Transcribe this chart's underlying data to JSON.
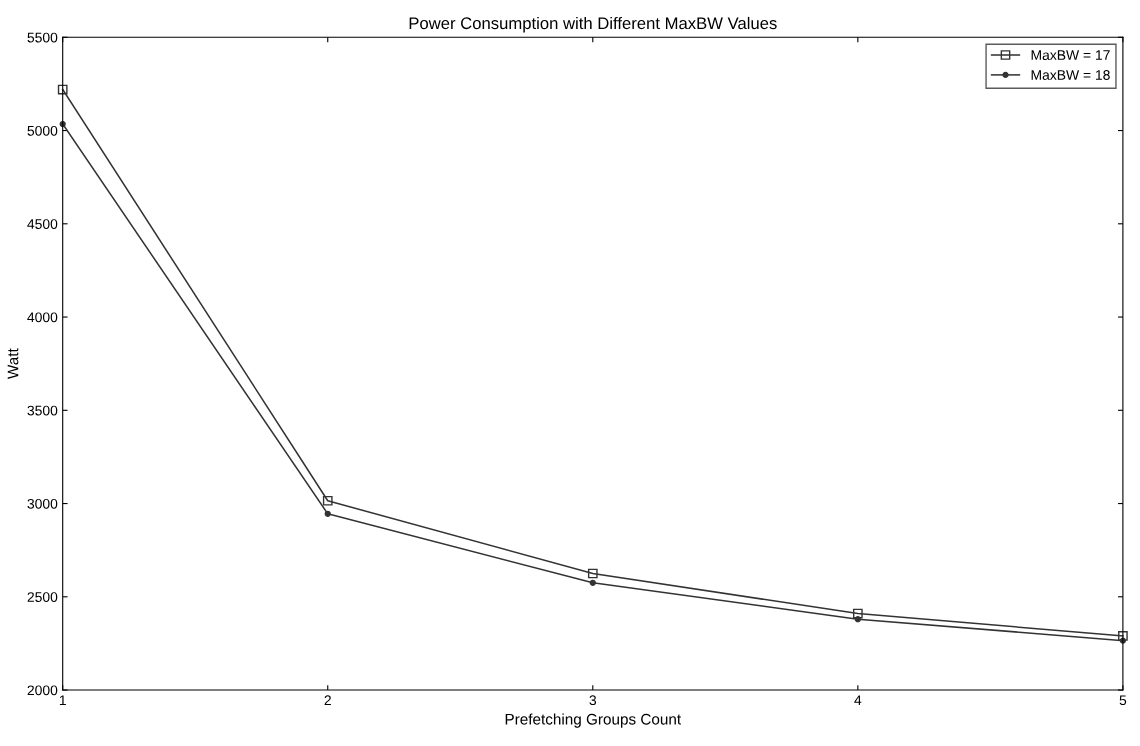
{
  "chart_data": {
    "type": "line",
    "title": "Power Consumption with Different MaxBW Values",
    "xlabel": "Prefetching Groups Count",
    "ylabel": "Watt",
    "x": [
      1,
      2,
      3,
      4,
      5
    ],
    "xlim": [
      1,
      5
    ],
    "xticks": [
      1,
      2,
      3,
      4,
      5
    ],
    "ylim": [
      2000,
      5500
    ],
    "yticks": [
      2000,
      2500,
      3000,
      3500,
      4000,
      4500,
      5000,
      5500
    ],
    "series": [
      {
        "name": "MaxBW = 17",
        "color": "#333333",
        "marker": "square",
        "values": [
          5220,
          3015,
          2625,
          2410,
          2290
        ]
      },
      {
        "name": "MaxBW = 18",
        "color": "#333333",
        "marker": "circle",
        "values": [
          5035,
          2945,
          2575,
          2380,
          2265
        ]
      }
    ],
    "grid": false,
    "legend": "top right",
    "line_style": "solid"
  }
}
